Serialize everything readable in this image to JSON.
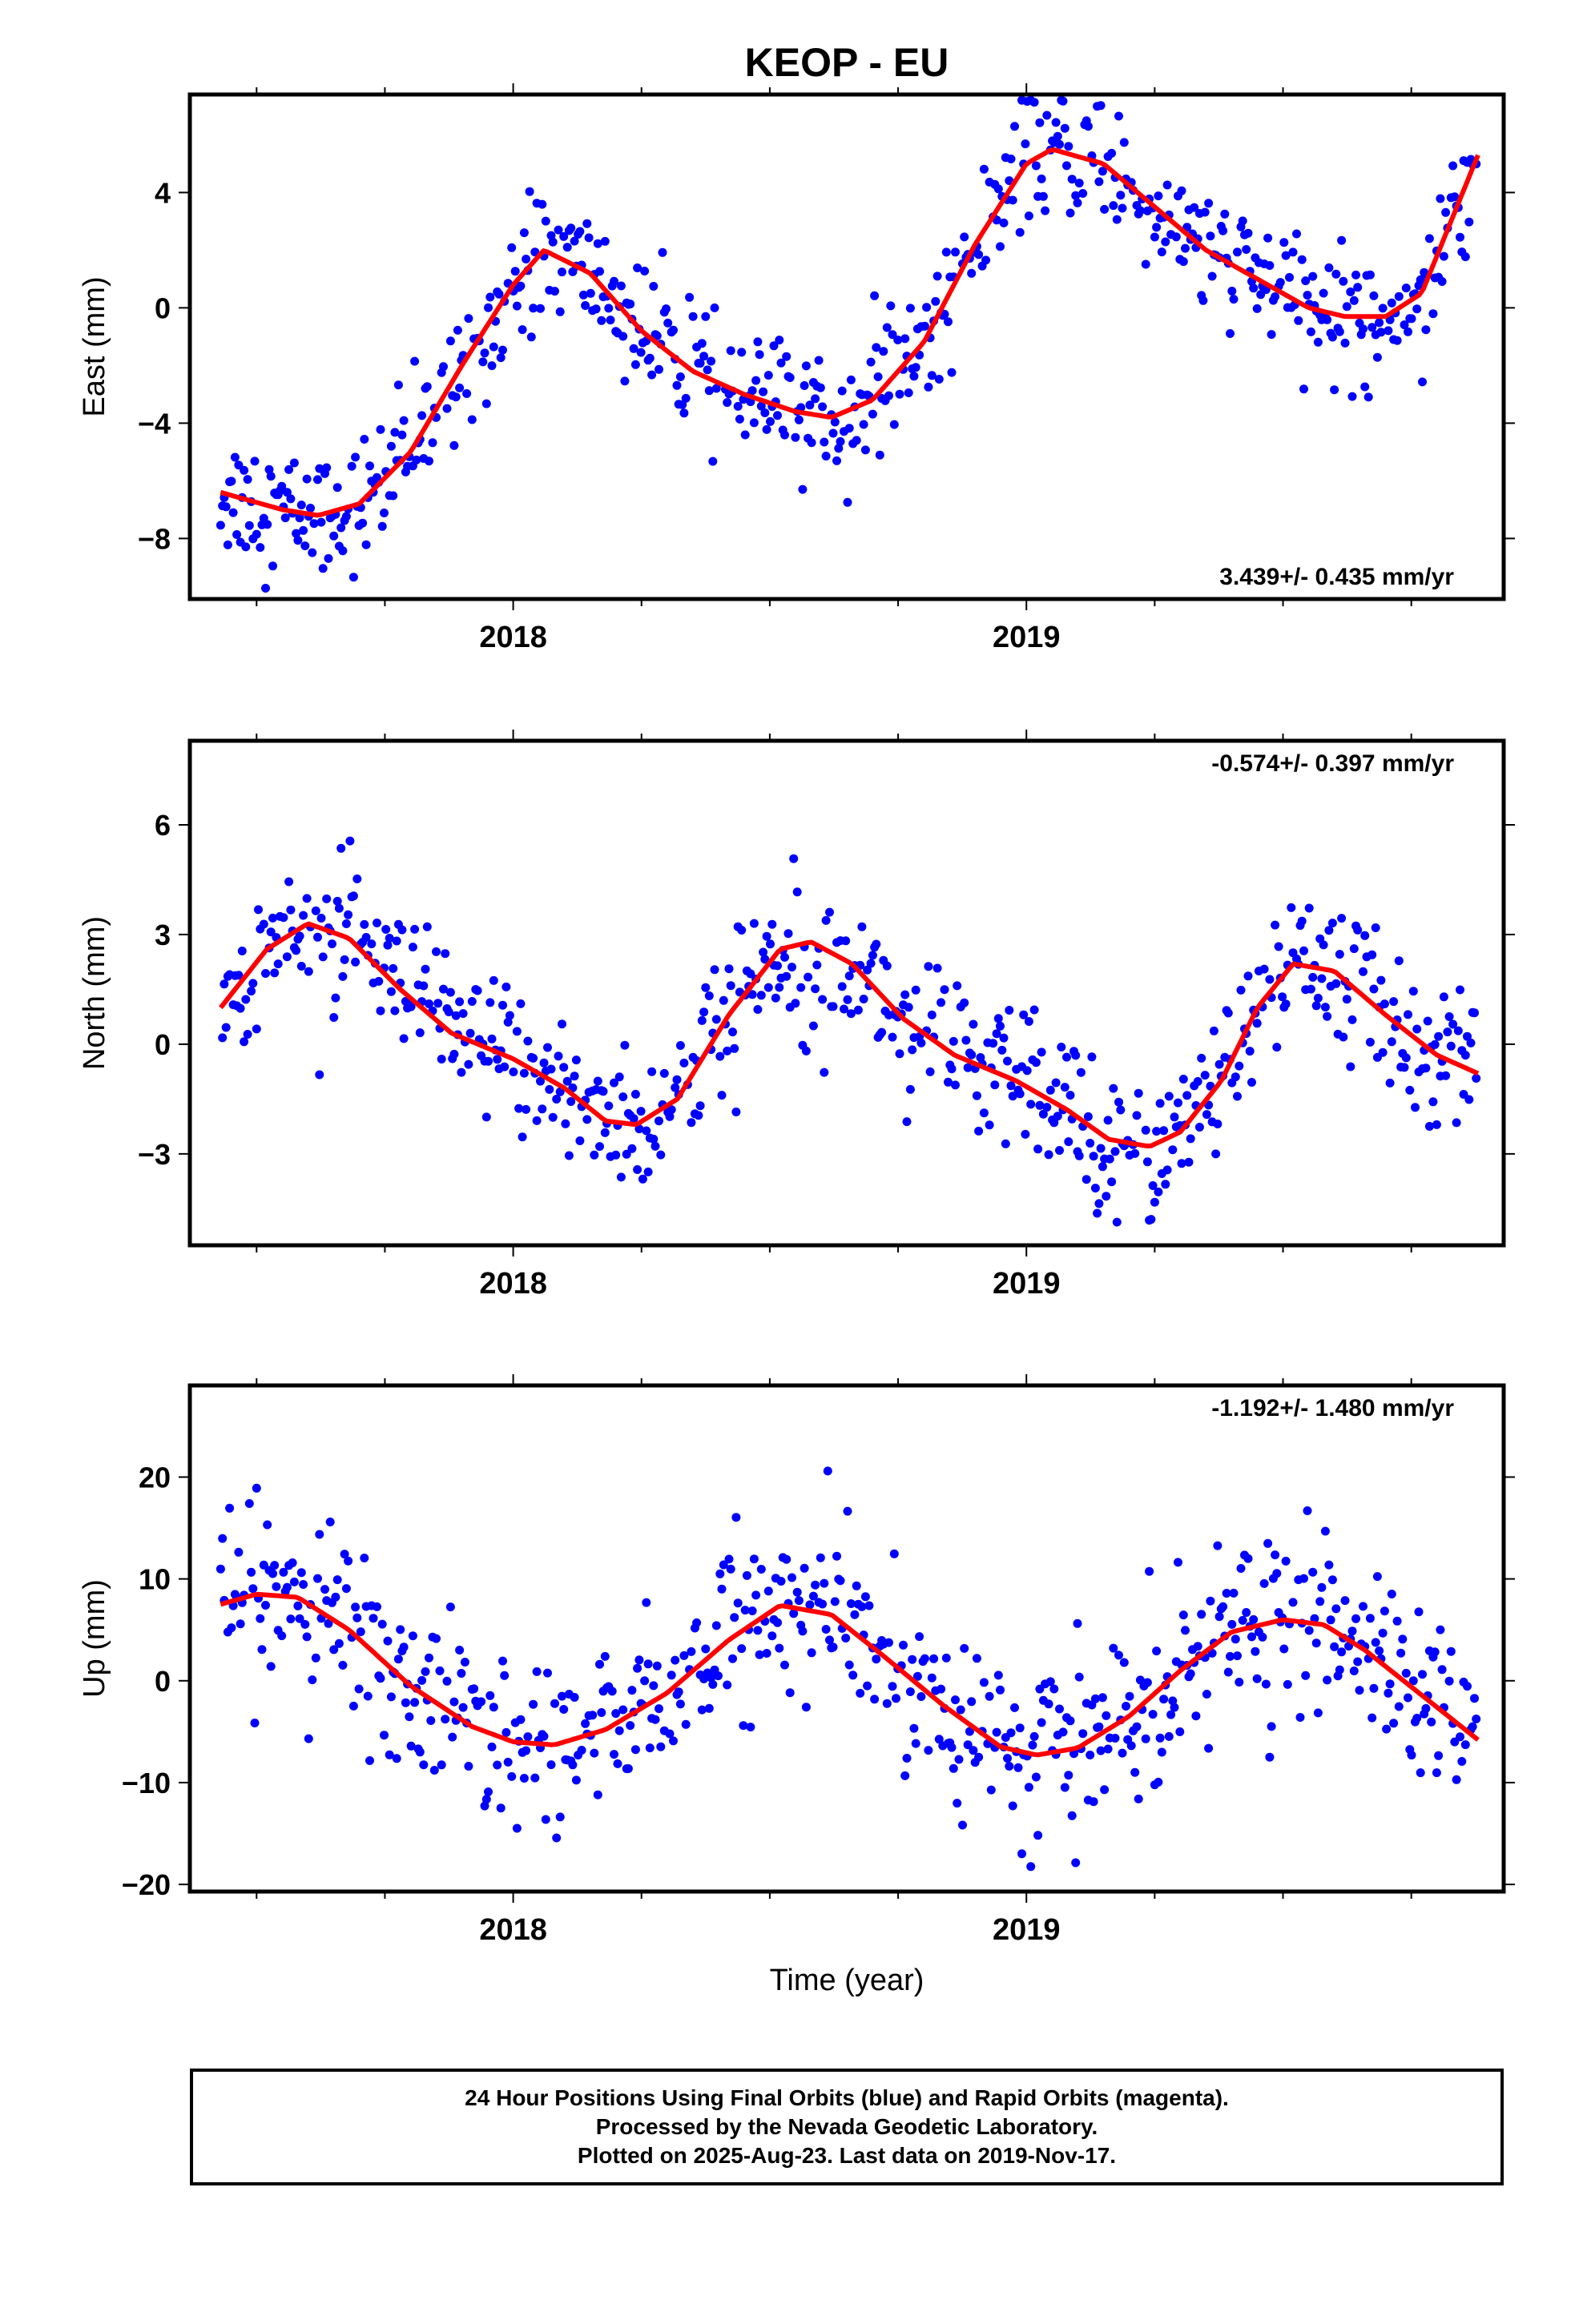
{
  "title": "KEOP - EU",
  "xlabel": "Time (year)",
  "colors": {
    "points": "#0000ff",
    "fit": "#ff0000",
    "frame": "#000000"
  },
  "footer": {
    "line1": "24 Hour Positions Using Final Orbits (blue) and Rapid Orbits (magenta).",
    "line2": "Processed by the Nevada Geodetic Laboratory.",
    "line3": "Plotted on 2025-Aug-23. Last data on 2019-Nov-17."
  },
  "chart_data": [
    {
      "type": "scatter",
      "ylabel": "East (mm)",
      "annotation": "3.439+/- 0.435 mm/yr",
      "xlim": [
        2017.37,
        2019.93
      ],
      "ylim": [
        -10.1,
        7.4
      ],
      "x_ticks": [
        2018,
        2019
      ],
      "y_ticks": [
        -8,
        -4,
        0,
        4
      ],
      "y_tick_labels": [
        "−8",
        "−4",
        "0",
        "4"
      ],
      "fit": {
        "x": [
          2017.43,
          2017.55,
          2017.62,
          2017.7,
          2017.8,
          2017.9,
          2018.0,
          2018.06,
          2018.15,
          2018.25,
          2018.35,
          2018.45,
          2018.55,
          2018.62,
          2018.7,
          2018.8,
          2018.9,
          2019.0,
          2019.05,
          2019.15,
          2019.25,
          2019.35,
          2019.45,
          2019.55,
          2019.62,
          2019.7,
          2019.77,
          2019.88
        ],
        "y": [
          -6.4,
          -7.0,
          -7.2,
          -6.8,
          -5.0,
          -2.0,
          0.8,
          2.0,
          1.2,
          -0.8,
          -2.2,
          -3.0,
          -3.6,
          -3.8,
          -3.2,
          -1.2,
          2.2,
          5.0,
          5.5,
          5.0,
          3.5,
          2.0,
          1.0,
          0.0,
          -0.3,
          -0.3,
          0.5,
          5.3
        ]
      },
      "scatter_noise": 1.1
    },
    {
      "type": "scatter",
      "ylabel": "North (mm)",
      "annotation": "-0.574+/- 0.397 mm/yr",
      "xlim": [
        2017.37,
        2019.93
      ],
      "ylim": [
        -5.5,
        8.3
      ],
      "x_ticks": [
        2018,
        2019
      ],
      "y_ticks": [
        -3,
        0,
        3,
        6
      ],
      "y_tick_labels": [
        "−3",
        "0",
        "3",
        "6"
      ],
      "fit": {
        "x": [
          2017.43,
          2017.52,
          2017.6,
          2017.68,
          2017.78,
          2017.88,
          2018.0,
          2018.1,
          2018.18,
          2018.24,
          2018.32,
          2018.42,
          2018.52,
          2018.58,
          2018.66,
          2018.76,
          2018.86,
          2018.98,
          2019.08,
          2019.16,
          2019.24,
          2019.3,
          2019.38,
          2019.45,
          2019.52,
          2019.6,
          2019.7,
          2019.8,
          2019.88
        ],
        "y": [
          1.0,
          2.6,
          3.3,
          2.9,
          1.5,
          0.3,
          -0.4,
          -1.2,
          -2.1,
          -2.2,
          -1.5,
          0.8,
          2.6,
          2.8,
          2.2,
          0.7,
          -0.3,
          -1.0,
          -1.8,
          -2.6,
          -2.8,
          -2.4,
          -1.0,
          1.0,
          2.2,
          2.0,
          0.8,
          -0.3,
          -0.8
        ]
      },
      "scatter_noise": 1.0
    },
    {
      "type": "scatter",
      "ylabel": "Up (mm)",
      "annotation": "-1.192+/- 1.480 mm/yr",
      "xlim": [
        2017.37,
        2019.93
      ],
      "ylim": [
        -20.7,
        29.0
      ],
      "x_ticks": [
        2018,
        2019
      ],
      "y_ticks": [
        -20,
        -10,
        0,
        10,
        20
      ],
      "y_tick_labels": [
        "−20",
        "−10",
        "0",
        "10",
        "20"
      ],
      "fit": {
        "x": [
          2017.43,
          2017.5,
          2017.58,
          2017.68,
          2017.8,
          2017.92,
          2018.0,
          2018.08,
          2018.18,
          2018.3,
          2018.42,
          2018.52,
          2018.62,
          2018.72,
          2018.84,
          2018.95,
          2019.02,
          2019.1,
          2019.2,
          2019.3,
          2019.4,
          2019.5,
          2019.58,
          2019.66,
          2019.76,
          2019.88
        ],
        "y": [
          7.5,
          8.5,
          8.2,
          5.0,
          -0.5,
          -4.5,
          -6.0,
          -6.3,
          -4.8,
          -1.2,
          4.0,
          7.4,
          6.5,
          2.5,
          -2.5,
          -6.5,
          -7.3,
          -6.6,
          -3.5,
          1.0,
          4.8,
          6.0,
          5.5,
          3.0,
          -1.0,
          -5.8
        ]
      },
      "scatter_noise": 4.2
    }
  ]
}
